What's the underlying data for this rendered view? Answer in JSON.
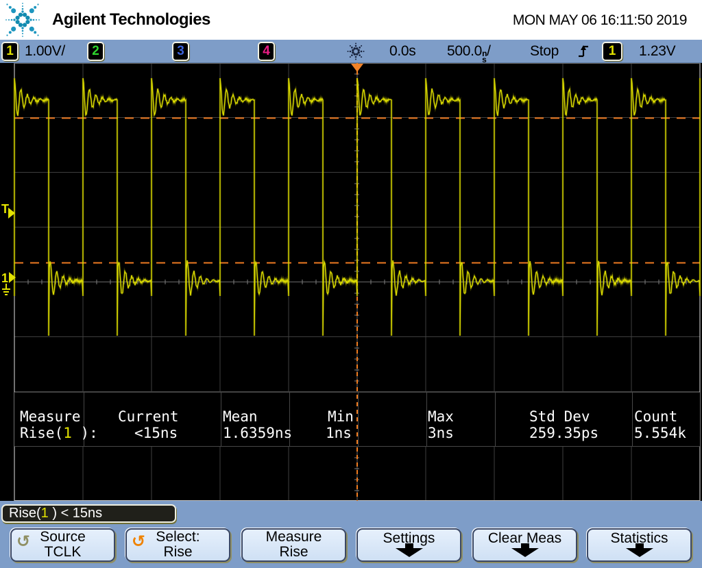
{
  "header": {
    "brand": "Agilent Technologies",
    "datetime": "MON MAY 06 16:11:50 2019"
  },
  "status": {
    "channels": [
      {
        "id": "1",
        "scale": "1.00V/",
        "color": "#e3e300"
      },
      {
        "id": "2",
        "color": "#2ed52e"
      },
      {
        "id": "3",
        "color": "#3b62d9"
      },
      {
        "id": "4",
        "color": "#ea1c86"
      }
    ],
    "delay": "0.0s",
    "timebase_value": "500.0",
    "timebase_unit_top": "n",
    "timebase_unit_bottom": "s",
    "timebase_suffix": "/",
    "run_state": "Stop",
    "trigger_source": "1",
    "trigger_level": "1.23V"
  },
  "plot": {
    "trigger_marker": "T",
    "channel_marker": "1"
  },
  "measure": {
    "row_header_line1": "Measure",
    "row_header_prefix": "Rise(",
    "row_header_chan": "1",
    "row_header_suffix": " ):",
    "columns": [
      {
        "header": "Current",
        "value": "<15ns"
      },
      {
        "header": "Mean",
        "value": "1.6359ns"
      },
      {
        "header": "Min",
        "value": "1ns"
      },
      {
        "header": "Max",
        "value": "3ns"
      },
      {
        "header": "Std Dev",
        "value": "259.35ps"
      },
      {
        "header": "Count",
        "value": "5.554k"
      }
    ]
  },
  "readout": {
    "prefix": "Rise(",
    "chan": "1",
    "suffix": " ) < 15ns"
  },
  "softkeys": [
    {
      "line1": "Source",
      "line2": "TCLK"
    },
    {
      "line1": "Select:",
      "line2": "Rise"
    },
    {
      "line1": "Measure",
      "line2": "Rise"
    },
    {
      "line1": "Settings"
    },
    {
      "line1": "Clear Meas"
    },
    {
      "line1": "Statistics"
    }
  ],
  "waveform": {
    "type": "square_wave_with_ringing",
    "volts_per_div": 1.0,
    "time_per_div": "500.0ns",
    "high_level_v": 3.3,
    "low_level_v": 0.0,
    "period_divs": 1.0,
    "duty_cycle": 0.5,
    "overshoot_v": 0.4,
    "undershoot_v": 1.0,
    "trigger_level_v": 1.23,
    "rise_threshold_upper_pct": 90,
    "rise_threshold_lower_pct": 10
  },
  "colors": {
    "trace_yellow": "#d8d800",
    "trigger_orange": "#f07c20",
    "panel_blue": "#7e9dc8",
    "button_face": "#d9e7f8",
    "logo_blue": "#1d96bf",
    "grid_gray": "#3f3f3f"
  }
}
